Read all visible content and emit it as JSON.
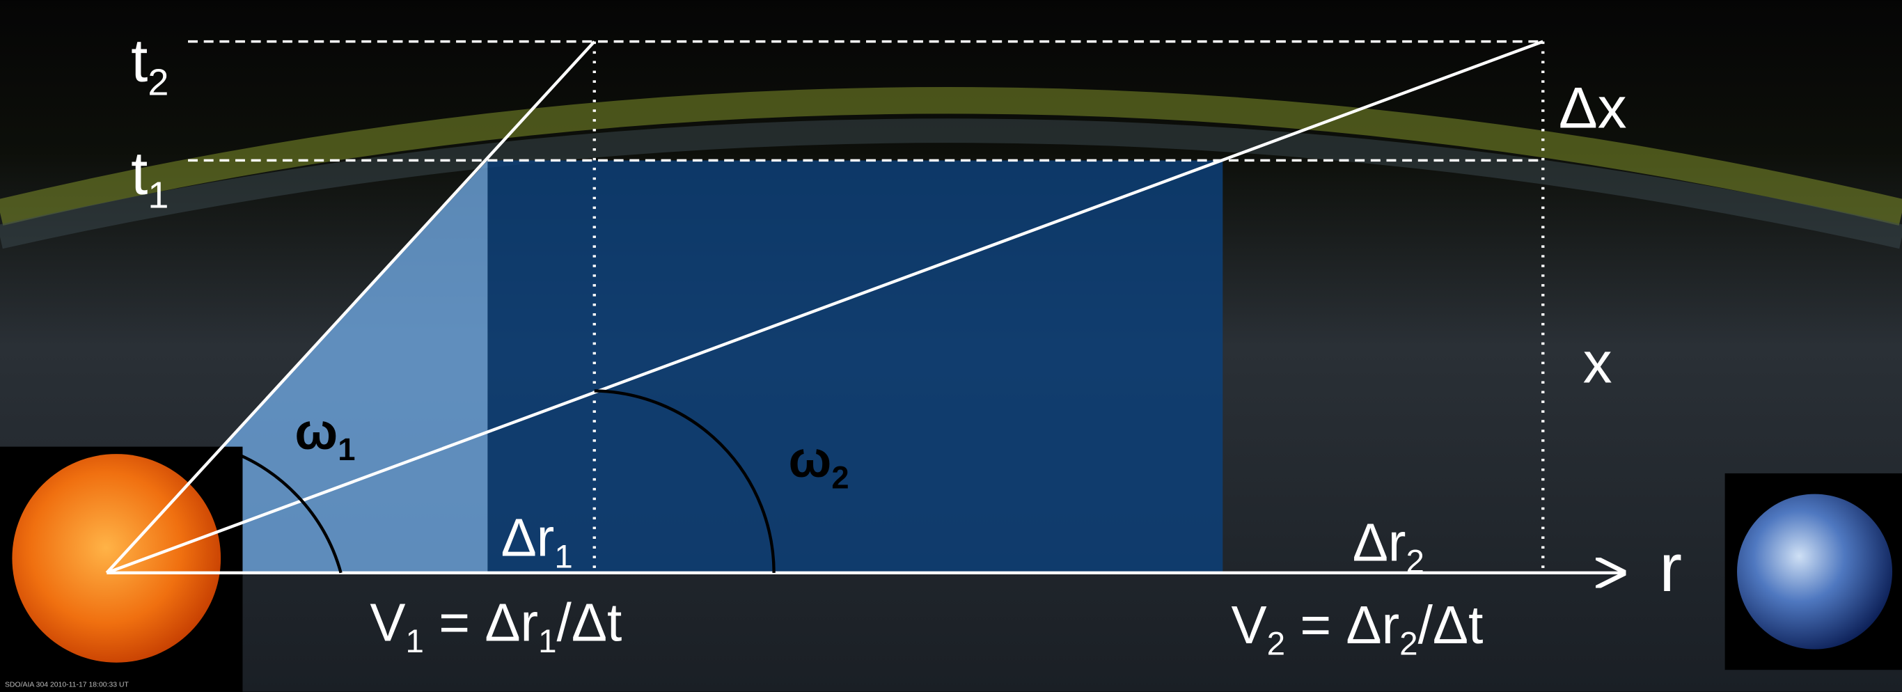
{
  "labels": [
    {
      "parts": [
        "t",
        "2"
      ]
    },
    {
      "parts": [
        "t",
        "1"
      ]
    },
    {
      "parts": [
        "Δx"
      ]
    },
    {
      "parts": [
        "x"
      ]
    },
    {
      "parts": [
        "ω",
        "1"
      ]
    },
    {
      "parts": [
        "ω",
        "2"
      ]
    },
    {
      "parts": [
        "Δr",
        "1"
      ]
    },
    {
      "parts": [
        "Δr",
        "2"
      ]
    },
    {
      "parts": [
        "r"
      ]
    },
    {
      "parts": [
        "V",
        "1",
        " = Δr",
        "1",
        "/Δt"
      ]
    },
    {
      "parts": [
        "V",
        "2",
        " = Δr",
        "2",
        "/Δt"
      ]
    }
  ],
  "sun_caption": "SDO/AIA 304  2010-11-17 18:00:33 UT"
}
